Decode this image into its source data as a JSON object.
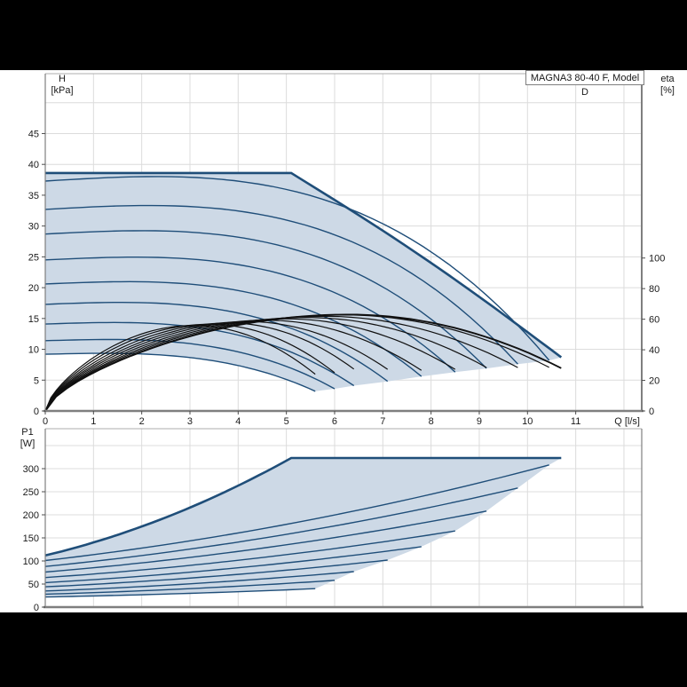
{
  "title_box": {
    "text": "MAGNA3 80-40 F, Model D"
  },
  "colors": {
    "background": "#000000",
    "panel": "#ffffff",
    "curve_blue": "#1f4e79",
    "envelope_fill": "#cdd9e6",
    "eta_black": "#101010",
    "gridline": "#dcdcdc",
    "frame": "#adadad",
    "axis": "#7f7f7f",
    "text": "#1a1a1a"
  },
  "chart_data": [
    {
      "type": "line",
      "title": "MAGNA3 80-40 F, Model D",
      "xlabel": "Q [l/s]",
      "ylabel_left_line1": "H",
      "ylabel_left_line2": "[kPa]",
      "ylabel_right_line1": "eta",
      "ylabel_right_line2": "[%]",
      "x_ticks": [
        0,
        1,
        2,
        3,
        4,
        5,
        6,
        7,
        8,
        9,
        10,
        11
      ],
      "x_gridlines": [
        1,
        2,
        3,
        4,
        5,
        6,
        7,
        8,
        9,
        10,
        11,
        12
      ],
      "xlim": [
        0,
        12.37
      ],
      "y_ticks": [
        0,
        5,
        10,
        15,
        20,
        25,
        30,
        35,
        40,
        45
      ],
      "y_gridlines": [
        5,
        10,
        15,
        20,
        25,
        30,
        35,
        40,
        45,
        50
      ],
      "ylim": [
        0,
        54.7
      ],
      "eta_ticks": [
        0,
        20,
        40,
        60,
        80,
        100
      ],
      "eta_scale_note": "eta 100% aligns with H = 24.8 kPa",
      "grid": true,
      "legend": "none",
      "speed_curves": [
        {
          "name": "speed_max",
          "h_at_q0": 38.6,
          "flat_until_q": 5.1,
          "q_max": 10.7,
          "h_at_qmax": 8.7,
          "thick": true
        },
        {
          "name": "speed_9",
          "h_at_q0": 37.3,
          "q_max": 10.45,
          "h_at_qmax": 8.2
        },
        {
          "name": "speed_8",
          "h_at_q0": 32.7,
          "q_max": 9.8,
          "h_at_qmax": 7.6
        },
        {
          "name": "speed_7",
          "h_at_q0": 28.7,
          "q_max": 9.15,
          "h_at_qmax": 6.9
        },
        {
          "name": "speed_6",
          "h_at_q0": 24.5,
          "q_max": 8.5,
          "h_at_qmax": 6.3
        },
        {
          "name": "speed_5",
          "h_at_q0": 20.6,
          "q_max": 7.8,
          "h_at_qmax": 5.6
        },
        {
          "name": "speed_4",
          "h_at_q0": 17.3,
          "q_max": 7.1,
          "h_at_qmax": 4.8
        },
        {
          "name": "speed_3",
          "h_at_q0": 14.1,
          "q_max": 6.4,
          "h_at_qmax": 4.1
        },
        {
          "name": "speed_2",
          "h_at_q0": 11.4,
          "q_max": 6.0,
          "h_at_qmax": 3.6
        },
        {
          "name": "speed_min",
          "h_at_q0": 9.2,
          "q_max": 5.6,
          "h_at_qmax": 3.2
        }
      ],
      "eta_curves": [
        {
          "name": "eta_max",
          "q_peak": 6.3,
          "eta_peak_pct": 63.0,
          "q_end": 10.7,
          "eta_end_pct": 28.0,
          "thick": true
        },
        {
          "name": "eta_9",
          "q_peak": 6.19,
          "eta_peak_pct": 62.8,
          "q_end": 10.45,
          "eta_end_pct": 28.5
        },
        {
          "name": "eta_8",
          "q_peak": 5.8,
          "eta_peak_pct": 61.9,
          "q_end": 9.8,
          "eta_end_pct": 28.4
        },
        {
          "name": "eta_7",
          "q_peak": 5.43,
          "eta_peak_pct": 61.1,
          "q_end": 9.15,
          "eta_end_pct": 28.4
        },
        {
          "name": "eta_6",
          "q_peak": 5.02,
          "eta_peak_pct": 60.2,
          "q_end": 8.5,
          "eta_end_pct": 27.2
        },
        {
          "name": "eta_5",
          "q_peak": 4.6,
          "eta_peak_pct": 59.3,
          "q_end": 7.8,
          "eta_end_pct": 26.6
        },
        {
          "name": "eta_4",
          "q_peak": 4.21,
          "eta_peak_pct": 58.4,
          "q_end": 7.1,
          "eta_end_pct": 27.2
        },
        {
          "name": "eta_3",
          "q_peak": 3.81,
          "eta_peak_pct": 57.5,
          "q_end": 6.4,
          "eta_end_pct": 27.4
        },
        {
          "name": "eta_2",
          "q_peak": 3.42,
          "eta_peak_pct": 56.7,
          "q_end": 6.0,
          "eta_end_pct": 25.0
        },
        {
          "name": "eta_min",
          "q_peak": 3.07,
          "eta_peak_pct": 55.9,
          "q_end": 5.6,
          "eta_end_pct": 24.0
        }
      ]
    },
    {
      "type": "line",
      "ylabel_line1": "P1",
      "ylabel_line2": "[W]",
      "x_gridlines": [
        1,
        2,
        3,
        4,
        5,
        6,
        7,
        8,
        9,
        10,
        11,
        12
      ],
      "xlim": [
        0,
        12.37
      ],
      "y_ticks": [
        0,
        50,
        100,
        150,
        200,
        250,
        300
      ],
      "y_gridlines": [
        50,
        100,
        150,
        200,
        250,
        300,
        350
      ],
      "ylim": [
        0,
        386
      ],
      "grid": true,
      "power_curves": [
        {
          "name": "p1_max",
          "p1_at_q0": 112,
          "knee_q": 5.1,
          "plateau_w": 323,
          "q_max": 10.7,
          "thick": true
        },
        {
          "name": "p1_9",
          "p1_at_q0": 101,
          "q_max": 10.45,
          "p1_at_qmax": 308
        },
        {
          "name": "p1_8",
          "p1_at_q0": 88,
          "q_max": 9.8,
          "p1_at_qmax": 258
        },
        {
          "name": "p1_7",
          "p1_at_q0": 76,
          "q_max": 9.15,
          "p1_at_qmax": 208
        },
        {
          "name": "p1_6",
          "p1_at_q0": 64,
          "q_max": 8.5,
          "p1_at_qmax": 165
        },
        {
          "name": "p1_5",
          "p1_at_q0": 53,
          "q_max": 7.8,
          "p1_at_qmax": 131
        },
        {
          "name": "p1_4",
          "p1_at_q0": 44,
          "q_max": 7.1,
          "p1_at_qmax": 102
        },
        {
          "name": "p1_3",
          "p1_at_q0": 35,
          "q_max": 6.4,
          "p1_at_qmax": 77
        },
        {
          "name": "p1_2",
          "p1_at_q0": 28,
          "q_max": 6.0,
          "p1_at_qmax": 58
        },
        {
          "name": "p1_min",
          "p1_at_q0": 22,
          "q_max": 5.6,
          "p1_at_qmax": 40
        }
      ]
    }
  ]
}
